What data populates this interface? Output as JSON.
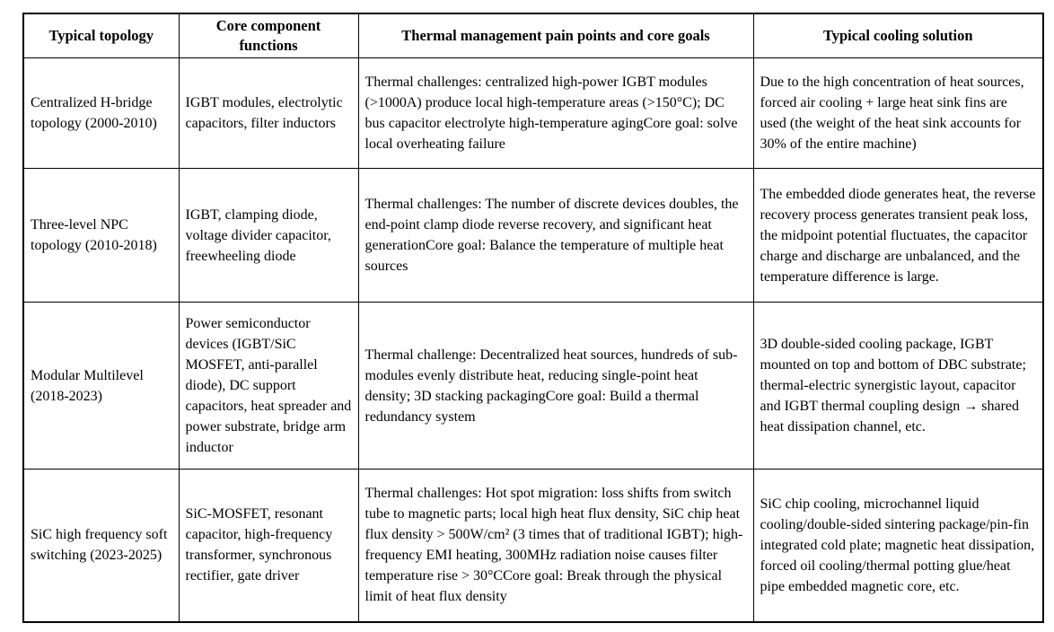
{
  "table": {
    "headers": [
      "Typical topology",
      "Core component functions",
      "Thermal management pain points and core goals",
      "Typical cooling solution"
    ],
    "rows": [
      {
        "topology": "Centralized H-bridge topology (2000-2010)",
        "components": "IGBT modules, electrolytic capacitors, filter inductors",
        "pain_points": "Thermal challenges: centralized high-power IGBT modules (>1000A) produce local high-temperature areas (>150°C); DC bus capacitor electrolyte high-temperature agingCore goal: solve local overheating failure",
        "cooling": "Due to the high concentration of heat sources, forced air cooling + large heat sink fins are used (the weight of the heat sink accounts for 30% of the entire machine)"
      },
      {
        "topology": "Three-level NPC topology (2010-2018)",
        "components": "IGBT, clamping diode, voltage divider capacitor, freewheeling diode",
        "pain_points": "Thermal challenges: The number of discrete devices doubles, the end-point clamp diode reverse recovery, and significant heat generationCore goal: Balance the temperature of multiple heat sources",
        "cooling": "The embedded diode generates heat, the reverse recovery process generates transient peak loss, the midpoint potential fluctuates, the capacitor charge and discharge are unbalanced, and the temperature difference is large."
      },
      {
        "topology": "Modular Multilevel (2018-2023)",
        "components": "Power semiconductor devices (IGBT/SiC MOSFET, anti-parallel diode), DC support capacitors, heat spreader and power substrate, bridge arm inductor",
        "pain_points": "Thermal challenge: Decentralized heat sources, hundreds of sub-modules evenly distribute heat, reducing single-point heat density; 3D stacking packagingCore goal: Build a thermal redundancy system",
        "cooling": "3D double-sided cooling package, IGBT mounted on top and bottom of DBC substrate; thermal-electric synergistic layout, capacitor and IGBT thermal coupling design → shared heat dissipation channel, etc."
      },
      {
        "topology": "SiC high frequency soft switching (2023-2025)",
        "components": "SiC-MOSFET, resonant capacitor, high-frequency transformer, synchronous rectifier, gate driver",
        "pain_points": "Thermal challenges: Hot spot migration: loss shifts from switch tube to magnetic parts; local high heat flux density, SiC chip heat flux density > 500W/cm² (3 times that of traditional IGBT); high-frequency EMI heating, 300MHz radiation noise causes filter temperature rise > 30°CCore goal: Break through the physical limit of heat flux density",
        "cooling": "SiC chip cooling, microchannel liquid cooling/double-sided sintering package/pin-fin integrated cold plate; magnetic heat dissipation, forced oil cooling/thermal potting glue/heat pipe embedded magnetic core, etc."
      }
    ]
  }
}
